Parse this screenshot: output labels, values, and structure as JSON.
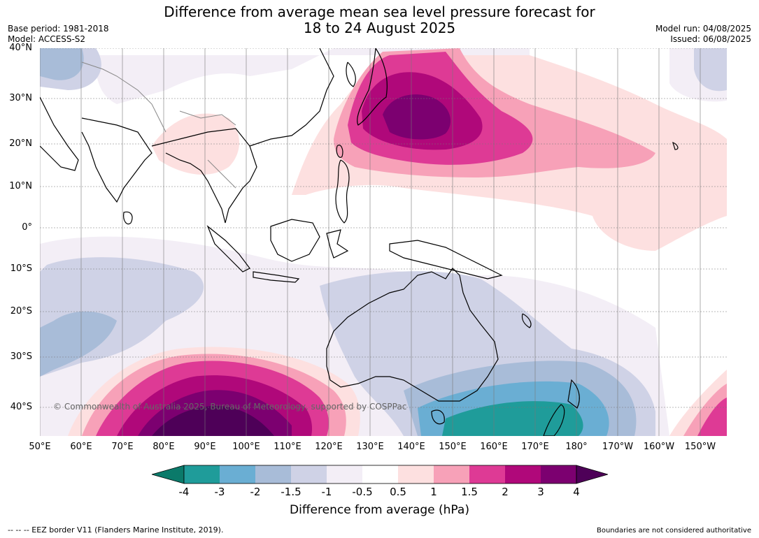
{
  "header": {
    "title_line1": "Difference from average mean sea level pressure forecast for",
    "title_line2": "18 to 24 August 2025",
    "base_period": "Base period: 1981-2018",
    "model": "Model: ACCESS-S2",
    "model_run": "Model run: 04/08/2025",
    "issued": "Issued: 06/08/2025"
  },
  "map": {
    "lat_labels": [
      "40°N",
      "30°N",
      "20°N",
      "10°N",
      "0°",
      "10°S",
      "20°S",
      "30°S",
      "40°S"
    ],
    "lon_labels": [
      "50°E",
      "60°E",
      "70°E",
      "80°E",
      "90°E",
      "100°E",
      "110°E",
      "120°E",
      "130°E",
      "140°E",
      "150°E",
      "160°E",
      "170°E",
      "180°",
      "170°W",
      "160°W",
      "150°W"
    ],
    "copyright": "© Commonwealth of Australia 2025, Bureau of Meteorology, supported by COSPPac"
  },
  "colorbar": {
    "labels": [
      "-4",
      "-3",
      "-2",
      "-1.5",
      "-1",
      "-0.5",
      "0.5",
      "1",
      "1.5",
      "2",
      "3",
      "4"
    ],
    "colors": [
      "#0b7a6a",
      "#1f9c9a",
      "#6aaed3",
      "#a8bcd8",
      "#cfd2e6",
      "#f3eef6",
      "#ffffff",
      "#fde0e0",
      "#f7a1b8",
      "#de3a95",
      "#b0087a",
      "#7c0070",
      "#4e0058"
    ],
    "title": "Difference from average (hPa)"
  },
  "footer": {
    "eez": "-- -- -- EEZ border V11 (Flanders Marine Institute, 2019).",
    "boundaries": "Boundaries are not considered authoritative"
  }
}
